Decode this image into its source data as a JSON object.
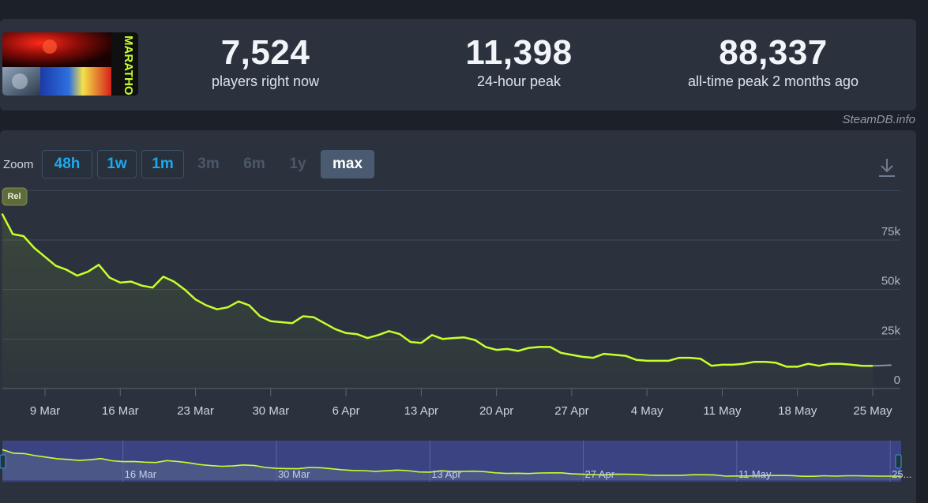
{
  "stats": [
    {
      "value": "7,524",
      "label": "players right now"
    },
    {
      "value": "11,398",
      "label": "24-hour peak"
    },
    {
      "value": "88,337",
      "label": "all-time peak 2 months ago"
    }
  ],
  "game": {
    "logo_text": "MARATHON"
  },
  "credit": "SteamDB.info",
  "zoom": {
    "label": "Zoom",
    "buttons": [
      {
        "label": "48h",
        "state": "enabled"
      },
      {
        "label": "1w",
        "state": "enabled"
      },
      {
        "label": "1m",
        "state": "enabled"
      },
      {
        "label": "3m",
        "state": "disabled"
      },
      {
        "label": "6m",
        "state": "disabled"
      },
      {
        "label": "1y",
        "state": "disabled"
      },
      {
        "label": "max",
        "state": "active"
      }
    ]
  },
  "icons": {
    "download": "download-icon"
  },
  "colors": {
    "line": "#c6ff2e",
    "navigator_bg": "#3b4383",
    "flag": "#5e6b3a"
  },
  "chart_data": {
    "type": "line",
    "title": "",
    "xlabel": "",
    "ylabel": "",
    "x_ticks": [
      "9 Mar",
      "16 Mar",
      "23 Mar",
      "30 Mar",
      "6 Apr",
      "13 Apr",
      "20 Apr",
      "27 Apr",
      "4 May",
      "11 May",
      "18 May",
      "25 May"
    ],
    "y_ticks": [
      "0",
      "25k",
      "50k",
      "75k"
    ],
    "ylim": [
      0,
      100000
    ],
    "grid": true,
    "flag_annotation": "Rel",
    "navigator_ticks": [
      "16 Mar",
      "30 Mar",
      "13 Apr",
      "27 Apr",
      "11 May",
      "25..."
    ],
    "series": [
      {
        "x": [
          "2026-03-05",
          "2026-03-06",
          "2026-03-07",
          "2026-03-08",
          "2026-03-09",
          "2026-03-10",
          "2026-03-11",
          "2026-03-12",
          "2026-03-13",
          "2026-03-14",
          "2026-03-15",
          "2026-03-16",
          "2026-03-17",
          "2026-03-18",
          "2026-03-19",
          "2026-03-20",
          "2026-03-21",
          "2026-03-22",
          "2026-03-23",
          "2026-03-24",
          "2026-03-25",
          "2026-03-26",
          "2026-03-27",
          "2026-03-28",
          "2026-03-29",
          "2026-03-30",
          "2026-03-31",
          "2026-04-01",
          "2026-04-02",
          "2026-04-03",
          "2026-04-04",
          "2026-04-05",
          "2026-04-06",
          "2026-04-07",
          "2026-04-08",
          "2026-04-09",
          "2026-04-10",
          "2026-04-11",
          "2026-04-12",
          "2026-04-13",
          "2026-04-14",
          "2026-04-15",
          "2026-04-16",
          "2026-04-17",
          "2026-04-18",
          "2026-04-19",
          "2026-04-20",
          "2026-04-21",
          "2026-04-22",
          "2026-04-23",
          "2026-04-24",
          "2026-04-25",
          "2026-04-26",
          "2026-04-27",
          "2026-04-28",
          "2026-04-29",
          "2026-04-30",
          "2026-05-01",
          "2026-05-02",
          "2026-05-03",
          "2026-05-04",
          "2026-05-05",
          "2026-05-06",
          "2026-05-07",
          "2026-05-08",
          "2026-05-09",
          "2026-05-10",
          "2026-05-11",
          "2026-05-12",
          "2026-05-13",
          "2026-05-14",
          "2026-05-15",
          "2026-05-16",
          "2026-05-17",
          "2026-05-18",
          "2026-05-19",
          "2026-05-20",
          "2026-05-21",
          "2026-05-22",
          "2026-05-23",
          "2026-05-24",
          "2026-05-25",
          "2026-05-26"
        ],
        "y": [
          88337,
          78000,
          77000,
          71000,
          66500,
          62000,
          60000,
          57000,
          59000,
          62500,
          56000,
          53500,
          54000,
          52000,
          51000,
          56500,
          54000,
          50000,
          45000,
          42000,
          40000,
          41000,
          44000,
          42000,
          36500,
          34000,
          33500,
          33000,
          36500,
          36000,
          33000,
          30000,
          28000,
          27500,
          25500,
          27000,
          29000,
          27500,
          23500,
          23000,
          27000,
          25000,
          25500,
          25800,
          24500,
          21000,
          19500,
          20000,
          19000,
          20500,
          21000,
          21000,
          18000,
          17000,
          16000,
          15500,
          17500,
          17000,
          16500,
          14500,
          14000,
          14000,
          14000,
          15500,
          15500,
          15000,
          11500,
          12000,
          12000,
          12500,
          13500,
          13500,
          13000,
          11000,
          11000,
          12500,
          11500,
          12500,
          12500,
          12000,
          11500,
          11400,
          11400
        ]
      }
    ]
  }
}
